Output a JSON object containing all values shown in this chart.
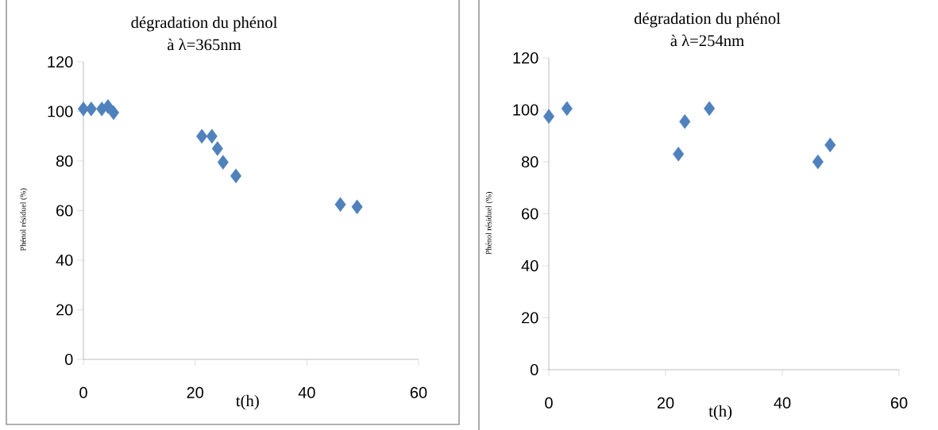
{
  "chart_data": [
    {
      "type": "scatter",
      "title": "dégradation du phénol",
      "subtitle": "à λ=365nm",
      "xlabel": "t(h)",
      "ylabel": "Phénol résiduel (%)",
      "xlim": [
        0,
        60
      ],
      "xticks": [
        0,
        20,
        40,
        60
      ],
      "ylim": [
        0,
        120
      ],
      "yticks": [
        0,
        20,
        40,
        60,
        80,
        100,
        120
      ],
      "marker": "diamond",
      "legend": false,
      "series": [
        {
          "color": "#4f81bd",
          "x": [
            0,
            1.4,
            3.3,
            4.4,
            5.4,
            21.2,
            23,
            24,
            25,
            27.3,
            46,
            49
          ],
          "values": [
            101,
            101,
            101,
            102,
            99.5,
            90,
            90,
            85,
            79.5,
            74,
            62.5,
            61.5
          ]
        }
      ]
    },
    {
      "type": "scatter",
      "title": "dégradation du phénol",
      "subtitle": "à λ=254nm",
      "xlabel": "t(h)",
      "ylabel": "Phénol résiduel (%)",
      "xlim": [
        0,
        60
      ],
      "xticks": [
        0,
        20,
        40,
        60
      ],
      "ylim": [
        0,
        120
      ],
      "yticks": [
        0,
        20,
        40,
        60,
        80,
        100,
        120
      ],
      "marker": "diamond",
      "legend": false,
      "series": [
        {
          "color": "#4f81bd",
          "x": [
            0,
            3.1,
            22.2,
            23.3,
            27.5,
            46.1,
            48.2
          ],
          "values": [
            97.5,
            100.5,
            83,
            95.5,
            100.5,
            80,
            86.5
          ]
        }
      ]
    }
  ]
}
